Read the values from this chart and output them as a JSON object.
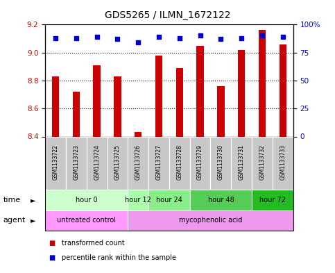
{
  "title": "GDS5265 / ILMN_1672122",
  "samples": [
    "GSM1133722",
    "GSM1133723",
    "GSM1133724",
    "GSM1133725",
    "GSM1133726",
    "GSM1133727",
    "GSM1133728",
    "GSM1133729",
    "GSM1133730",
    "GSM1133731",
    "GSM1133732",
    "GSM1133733"
  ],
  "bar_values": [
    8.83,
    8.72,
    8.91,
    8.83,
    8.43,
    8.98,
    8.89,
    9.05,
    8.76,
    9.02,
    9.16,
    9.06
  ],
  "percentile_values": [
    88,
    88,
    89,
    87,
    84,
    89,
    88,
    90,
    87,
    88,
    90,
    89
  ],
  "bar_bottom": 8.4,
  "ylim_left": [
    8.4,
    9.2
  ],
  "ylim_right": [
    0,
    100
  ],
  "yticks_left": [
    8.4,
    8.6,
    8.8,
    9.0,
    9.2
  ],
  "yticks_right": [
    0,
    25,
    50,
    75,
    100
  ],
  "ytick_labels_right": [
    "0",
    "25",
    "50",
    "75",
    "100%"
  ],
  "bar_color": "#cc0000",
  "dot_color": "#0000cc",
  "time_groups": [
    {
      "label": "hour 0",
      "start": 0,
      "end": 4,
      "color": "#ccffcc"
    },
    {
      "label": "hour 12",
      "start": 4,
      "end": 5,
      "color": "#aaffaa"
    },
    {
      "label": "hour 24",
      "start": 5,
      "end": 7,
      "color": "#88ee88"
    },
    {
      "label": "hour 48",
      "start": 7,
      "end": 10,
      "color": "#55cc55"
    },
    {
      "label": "hour 72",
      "start": 10,
      "end": 12,
      "color": "#22bb22"
    }
  ],
  "agent_groups": [
    {
      "label": "untreated control",
      "start": 0,
      "end": 4,
      "color": "#ff99ff"
    },
    {
      "label": "mycophenolic acid",
      "start": 4,
      "end": 12,
      "color": "#ee99ee"
    }
  ],
  "row_label_time": "time",
  "row_label_agent": "agent",
  "legend_bar": "transformed count",
  "legend_dot": "percentile rank within the sample",
  "bar_color_hex": "#cc0000",
  "dot_color_hex": "#0000cc",
  "bar_width": 0.35,
  "sample_box_color": "#c8c8c8",
  "grid_yticks": [
    8.6,
    8.8,
    9.0
  ]
}
